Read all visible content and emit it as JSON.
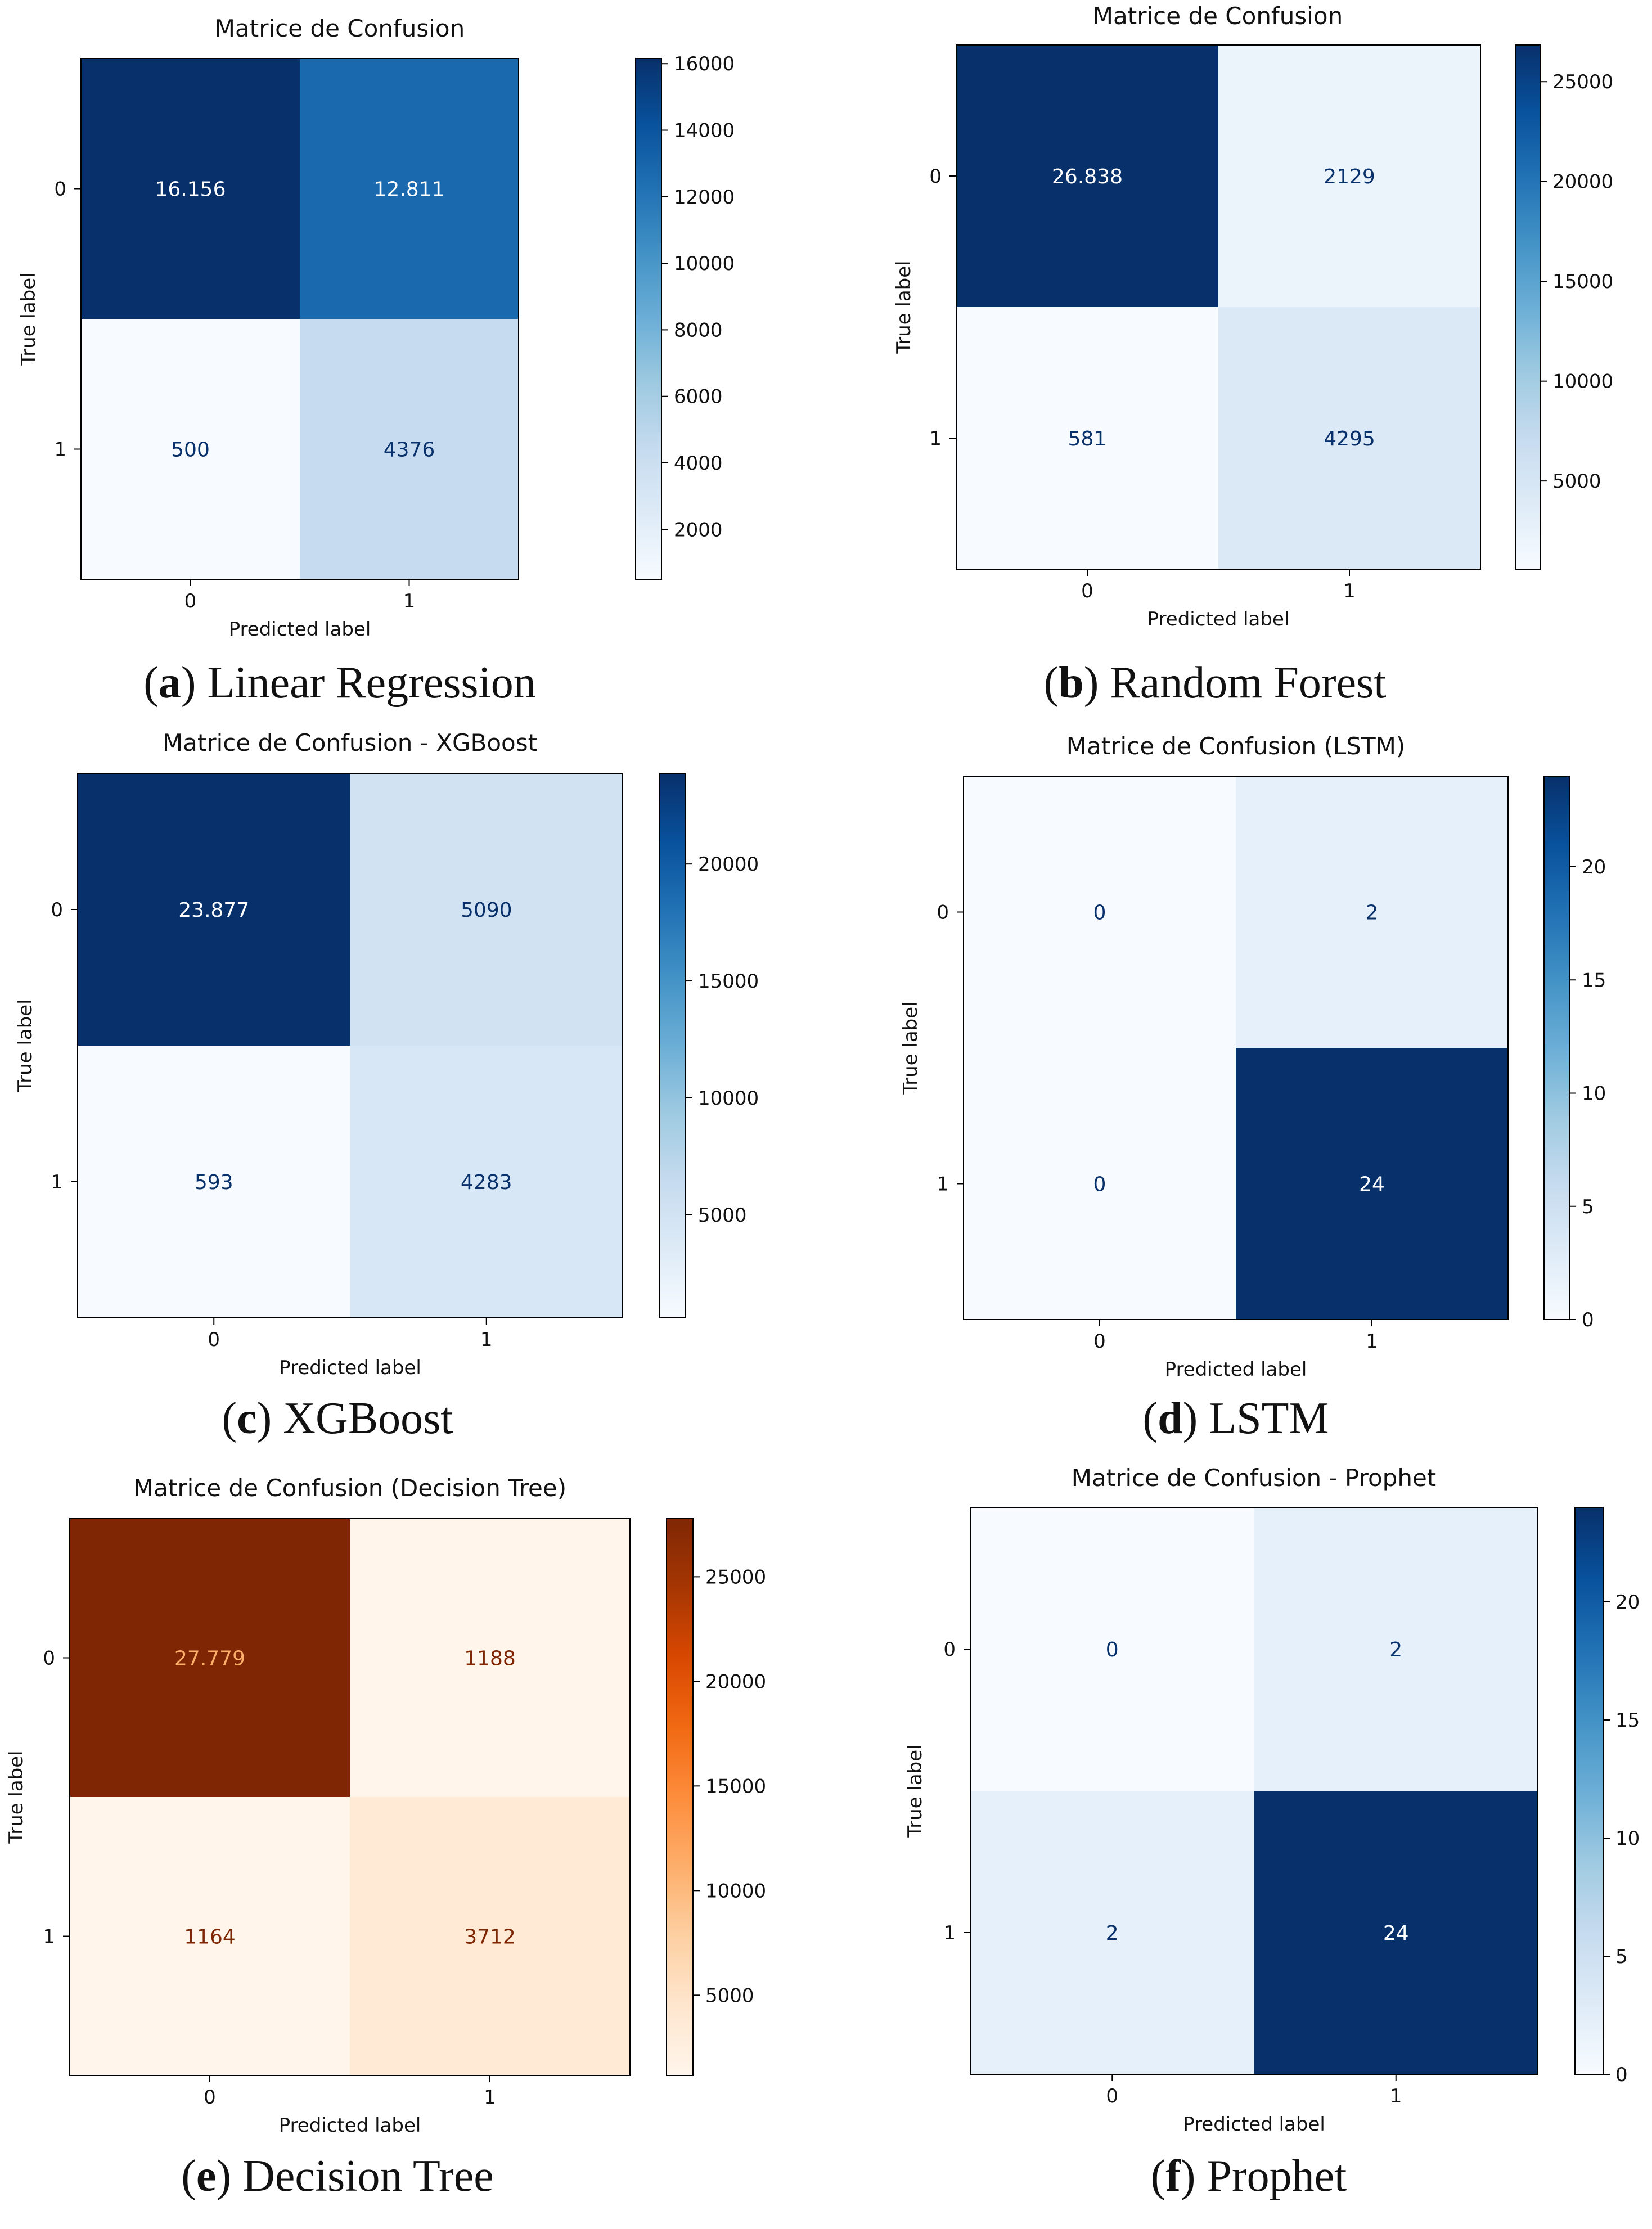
{
  "chart_data": [
    {
      "type": "heatmap",
      "id": "a",
      "title": "Matrice de Confusion",
      "caption_letter": "a",
      "caption_text": "Linear Regression",
      "xlabel": "Predicted label",
      "ylabel": "True label",
      "x_ticks": [
        "0",
        "1"
      ],
      "y_ticks": [
        "0",
        "1"
      ],
      "values": [
        [
          16156,
          12811
        ],
        [
          500,
          4376
        ]
      ],
      "cell_labels": [
        [
          "16.156",
          "12.811"
        ],
        [
          "500",
          "4376"
        ]
      ],
      "colormap": "Blues",
      "colorbar_range": [
        500,
        16156
      ],
      "colorbar_ticks": [
        2000,
        4000,
        6000,
        8000,
        10000,
        12000,
        14000,
        16000
      ]
    },
    {
      "type": "heatmap",
      "id": "b",
      "title": "Matrice de Confusion",
      "caption_letter": "b",
      "caption_text": "Random Forest",
      "xlabel": "Predicted label",
      "ylabel": "True label",
      "x_ticks": [
        "0",
        "1"
      ],
      "y_ticks": [
        "0",
        "1"
      ],
      "values": [
        [
          26838,
          2129
        ],
        [
          581,
          4295
        ]
      ],
      "cell_labels": [
        [
          "26.838",
          "2129"
        ],
        [
          "581",
          "4295"
        ]
      ],
      "colormap": "Blues",
      "colorbar_range": [
        581,
        26838
      ],
      "colorbar_ticks": [
        5000,
        10000,
        15000,
        20000,
        25000
      ]
    },
    {
      "type": "heatmap",
      "id": "c",
      "title": "Matrice de Confusion - XGBoost",
      "caption_letter": "c",
      "caption_text": "XGBoost",
      "xlabel": "Predicted label",
      "ylabel": "True label",
      "x_ticks": [
        "0",
        "1"
      ],
      "y_ticks": [
        "0",
        "1"
      ],
      "values": [
        [
          23877,
          5090
        ],
        [
          593,
          4283
        ]
      ],
      "cell_labels": [
        [
          "23.877",
          "5090"
        ],
        [
          "593",
          "4283"
        ]
      ],
      "colormap": "Blues",
      "colorbar_range": [
        593,
        23877
      ],
      "colorbar_ticks": [
        5000,
        10000,
        15000,
        20000
      ]
    },
    {
      "type": "heatmap",
      "id": "d",
      "title": "Matrice de Confusion (LSTM)",
      "caption_letter": "d",
      "caption_text": "LSTM",
      "xlabel": "Predicted label",
      "ylabel": "True label",
      "x_ticks": [
        "0",
        "1"
      ],
      "y_ticks": [
        "0",
        "1"
      ],
      "values": [
        [
          0,
          2
        ],
        [
          0,
          24
        ]
      ],
      "cell_labels": [
        [
          "0",
          "2"
        ],
        [
          "0",
          "24"
        ]
      ],
      "colormap": "Blues",
      "colorbar_range": [
        0,
        24
      ],
      "colorbar_ticks": [
        0,
        5,
        10,
        15,
        20
      ]
    },
    {
      "type": "heatmap",
      "id": "e",
      "title": "Matrice de Confusion (Decision Tree)",
      "caption_letter": "e",
      "caption_text": "Decision Tree",
      "xlabel": "Predicted label",
      "ylabel": "True label",
      "x_ticks": [
        "0",
        "1"
      ],
      "y_ticks": [
        "0",
        "1"
      ],
      "values": [
        [
          27779,
          1188
        ],
        [
          1164,
          3712
        ]
      ],
      "cell_labels": [
        [
          "27.779",
          "1188"
        ],
        [
          "1164",
          "3712"
        ]
      ],
      "colormap": "Oranges",
      "colorbar_range": [
        1164,
        27779
      ],
      "colorbar_ticks": [
        5000,
        10000,
        15000,
        20000,
        25000
      ]
    },
    {
      "type": "heatmap",
      "id": "f",
      "title": "Matrice de Confusion - Prophet",
      "caption_letter": "f",
      "caption_text": "Prophet",
      "xlabel": "Predicted label",
      "ylabel": "True label",
      "x_ticks": [
        "0",
        "1"
      ],
      "y_ticks": [
        "0",
        "1"
      ],
      "values": [
        [
          0,
          2
        ],
        [
          2,
          24
        ]
      ],
      "cell_labels": [
        [
          "0",
          "2"
        ],
        [
          "2",
          "24"
        ]
      ],
      "colormap": "Blues",
      "colorbar_range": [
        0,
        24
      ],
      "colorbar_ticks": [
        0,
        5,
        10,
        15,
        20
      ]
    }
  ],
  "colormaps": {
    "Blues": [
      "#f7fbff",
      "#deebf7",
      "#c6dbef",
      "#9ecae1",
      "#6baed6",
      "#4292c6",
      "#2171b5",
      "#08519c",
      "#08306b"
    ],
    "Oranges": [
      "#fff5eb",
      "#fee6ce",
      "#fdd0a2",
      "#fdae6b",
      "#fd8d3c",
      "#f16913",
      "#d94801",
      "#a63603",
      "#7f2704"
    ]
  },
  "text_colors": {
    "Blues": {
      "light": "#ffffff",
      "dark": "#08306b"
    },
    "Oranges": {
      "light": "#fdae6b",
      "dark": "#7f2704"
    }
  },
  "axis_color": "#000000"
}
